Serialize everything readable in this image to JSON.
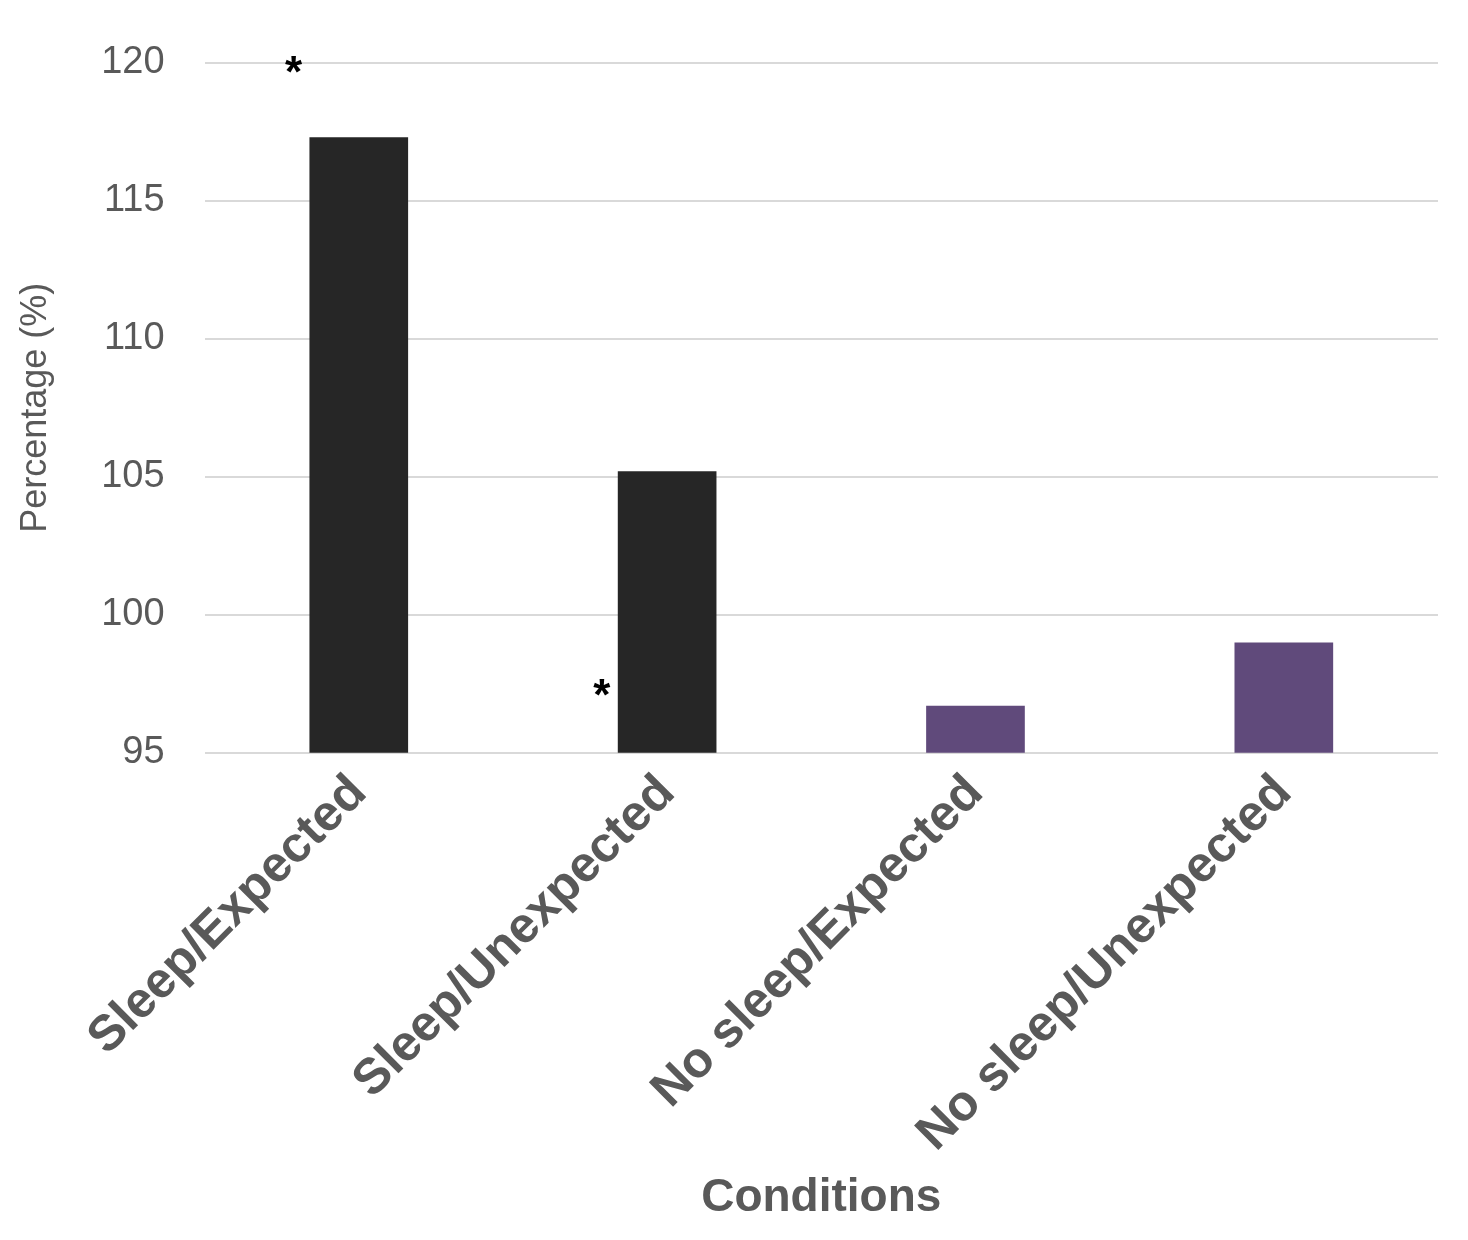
{
  "chart_data": {
    "type": "bar",
    "xlabel": "Conditions",
    "ylabel": "Percentage (%)",
    "categories": [
      "Sleep/Expected",
      "Sleep/Unexpected",
      "No sleep/Expected",
      "No sleep/Unexpected"
    ],
    "values": [
      117.3,
      105.2,
      96.7,
      99.0
    ],
    "colors": [
      "#262626",
      "#262626",
      "#604a7b",
      "#604a7b"
    ],
    "ylim": [
      95,
      120
    ],
    "yticks": [
      95,
      100,
      105,
      110,
      115,
      120
    ],
    "grid": "y",
    "legend": false,
    "annotations": [
      "*",
      "*"
    ]
  }
}
